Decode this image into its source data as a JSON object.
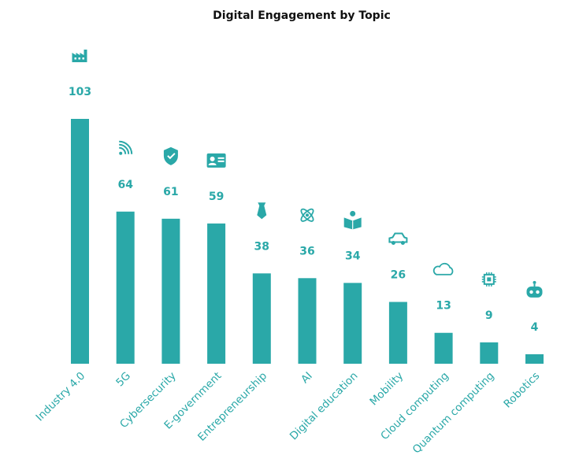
{
  "colors": {
    "accent": "#2aa8a8",
    "title": "#111111"
  },
  "chart_data": {
    "type": "bar",
    "title": "Digital Engagement by Topic",
    "xlabel": "",
    "ylabel": "",
    "ylim": [
      0,
      103
    ],
    "grid": false,
    "categories": [
      "Industry 4.0",
      "5G",
      "Cybersecurity",
      "E-government",
      "Entrepreneurship",
      "AI",
      "Digital education",
      "Mobility",
      "Cloud computing",
      "Quantum computing",
      "Robotics"
    ],
    "values": [
      103,
      64,
      61,
      59,
      38,
      36,
      34,
      26,
      13,
      9,
      4
    ],
    "icons": [
      "factory-icon",
      "signal-icon",
      "shield-check-icon",
      "id-card-icon",
      "tie-icon",
      "atom-icon",
      "book-reader-icon",
      "car-icon",
      "cloud-icon",
      "chip-icon",
      "robot-icon"
    ]
  }
}
